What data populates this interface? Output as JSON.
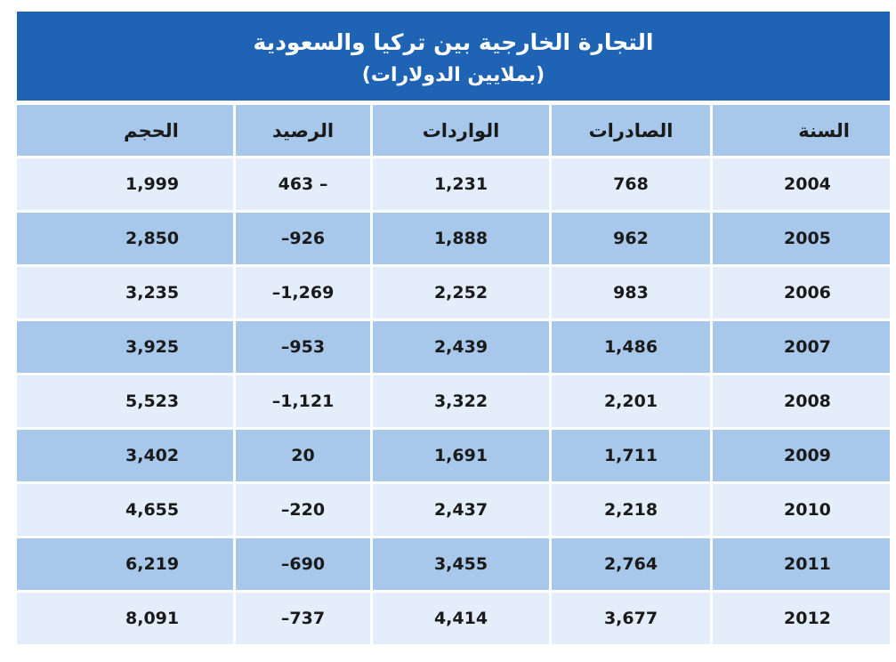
{
  "title": {
    "main": "التجارة الخارجية بين تركيا والسعودية",
    "sub": "(بملايين الدولارات)"
  },
  "headers": {
    "year": "السنة",
    "exports": "الصادرات",
    "imports": "الواردات",
    "balance": "الرصيد",
    "volume": "الحجم"
  },
  "rows": [
    {
      "year": "2004",
      "exports": "768",
      "imports": "1,231",
      "balance": "– 463",
      "volume": "1,999"
    },
    {
      "year": "2005",
      "exports": "962",
      "imports": "1,888",
      "balance": "926–",
      "volume": "2,850"
    },
    {
      "year": "2006",
      "exports": "983",
      "imports": "2,252",
      "balance": "1,269–",
      "volume": "3,235"
    },
    {
      "year": "2007",
      "exports": "1,486",
      "imports": "2,439",
      "balance": "953–",
      "volume": "3,925"
    },
    {
      "year": "2008",
      "exports": "2,201",
      "imports": "3,322",
      "balance": "1,121–",
      "volume": "5,523"
    },
    {
      "year": "2009",
      "exports": "1,711",
      "imports": "1,691",
      "balance": "20",
      "volume": "3,402"
    },
    {
      "year": "2010",
      "exports": "2,218",
      "imports": "2,437",
      "balance": "220–",
      "volume": "4,655"
    },
    {
      "year": "2011",
      "exports": "2,764",
      "imports": "3,455",
      "balance": "690–",
      "volume": "6,219"
    },
    {
      "year": "2012",
      "exports": "3,677",
      "imports": "4,414",
      "balance": "737–",
      "volume": "8,091"
    }
  ],
  "colors": {
    "title_bg": "#1f63b5",
    "header_bg": "#a7c8eb",
    "row_light": "#e3eefa",
    "row_dark": "#a7c8eb"
  }
}
